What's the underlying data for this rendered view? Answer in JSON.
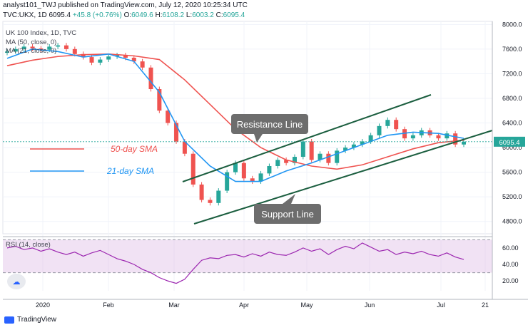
{
  "header": {
    "line1": "analyst101_TWJ published on TradingView.com, July 12, 2020 10:25:34 UTC",
    "symbol": "TVC:UKX, 1D",
    "last": "6095.4",
    "change": "+45.8 (+0.76%)",
    "o_label": "O:",
    "o": "6049.6",
    "h_label": "H:",
    "h": "6108.2",
    "l_label": "L:",
    "l": "6003.2",
    "c_label": "C:",
    "c": "6095.4"
  },
  "legend": {
    "title": "UK 100 Index, 1D, TVC",
    "ma50": "MA (50, close, 0)",
    "ma21": "MA (21, close, 0)"
  },
  "rsi_label": "RSI (14, close)",
  "price_badge": "6095.4",
  "footer": {
    "brand": "TradingView"
  },
  "colors": {
    "up": "#26a69a",
    "down": "#ef5350",
    "ma50": "#ef5350",
    "ma21": "#2196f3",
    "channel": "#1b5e3f",
    "rsi_line": "#9c27b0",
    "rsi_band": "#e1bee7",
    "callout": "#6d6d6d"
  },
  "chart_data": [
    {
      "type": "candlestick",
      "title": "UK 100 Index, 1D, TVC",
      "x_ticks": [
        "2020",
        "Feb",
        "Mar",
        "Apr",
        "May",
        "Jun",
        "Jul",
        "21"
      ],
      "y_ticks": [
        "4800.0",
        "5200.0",
        "5600.0",
        "6000.0",
        "6400.0",
        "6800.0",
        "7200.0",
        "7600.0",
        "8000.0"
      ],
      "ylim": [
        4600,
        8050
      ],
      "ma50_values": [
        7330,
        7420,
        7480,
        7510,
        7520,
        7490,
        7430,
        7100,
        6700,
        6300,
        6000,
        5800,
        5700,
        5650,
        5720,
        5850,
        5980,
        6080,
        6120
      ],
      "ma21_values": [
        7450,
        7600,
        7560,
        7470,
        7520,
        7400,
        6900,
        6100,
        5700,
        5450,
        5450,
        5620,
        5750,
        5900,
        6050,
        6200,
        6250,
        6230,
        6150
      ],
      "annotations": [
        {
          "label": "Resistance Line"
        },
        {
          "label": "Support Line"
        },
        {
          "label": "50-day SMA"
        },
        {
          "label": "21-day SMA"
        }
      ],
      "closes": [
        7560,
        7600,
        7640,
        7610,
        7590,
        7640,
        7660,
        7600,
        7520,
        7470,
        7380,
        7430,
        7480,
        7500,
        7460,
        7400,
        7300,
        6950,
        6600,
        6400,
        6100,
        5900,
        5400,
        5150,
        5100,
        5300,
        5600,
        5750,
        5500,
        5450,
        5580,
        5700,
        5800,
        5750,
        5850,
        6100,
        5800,
        5900,
        5750,
        5950,
        6000,
        6050,
        6100,
        6200,
        6350,
        6450,
        6300,
        6150,
        6200,
        6280,
        6200,
        6150,
        6230,
        6050,
        6095
      ]
    },
    {
      "type": "line",
      "title": "RSI (14, close)",
      "y_ticks": [
        "20.00",
        "40.00",
        "60.00"
      ],
      "ylim": [
        8,
        72
      ],
      "band": [
        30,
        70
      ],
      "values": [
        60,
        62,
        58,
        60,
        56,
        59,
        55,
        52,
        55,
        50,
        54,
        57,
        52,
        47,
        44,
        40,
        34,
        30,
        24,
        20,
        17,
        22,
        34,
        45,
        48,
        47,
        51,
        52,
        49,
        53,
        50,
        55,
        52,
        51,
        55,
        60,
        56,
        59,
        52,
        58,
        62,
        59,
        66,
        61,
        56,
        58,
        52,
        55,
        53,
        56,
        52,
        50,
        54,
        49,
        46
      ]
    }
  ]
}
